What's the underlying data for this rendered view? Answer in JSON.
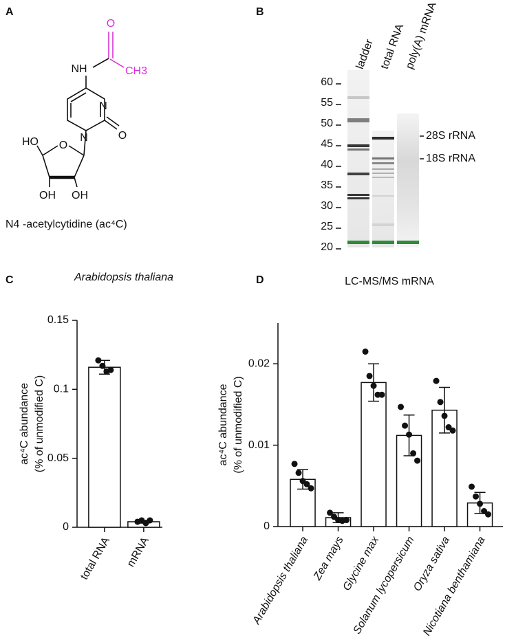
{
  "panel_labels": [
    "A",
    "B",
    "C",
    "D"
  ],
  "structure": {
    "atoms": [
      "NH",
      "O",
      "CH3",
      "N",
      "O",
      "N",
      "O",
      "HO",
      "OH",
      "OH"
    ],
    "caption": "N4 -acetylcytidine (ac⁴C)"
  },
  "gel": {
    "ticks": [
      60,
      55,
      50,
      45,
      40,
      35,
      30,
      25,
      20
    ],
    "lanes": [
      "ladder",
      "total RNA",
      "poly(A) mRNA"
    ],
    "markers": [
      {
        "label": "28S rRNA",
        "value": 47
      },
      {
        "label": "18S rRNA",
        "value": 41.5
      }
    ]
  },
  "chart_data": [
    {
      "type": "bar",
      "title": "Arabidopsis thaliana",
      "ylabel": [
        "ac⁴C abundance",
        "(% of unmodified C)"
      ],
      "categories": [
        "total RNA",
        "mRNA"
      ],
      "values": [
        0.116,
        0.004
      ],
      "errors": [
        0.005,
        0.001
      ],
      "points": [
        [
          0.121,
          0.117,
          0.113,
          0.114
        ],
        [
          0.004,
          0.005,
          0.003,
          0.005
        ]
      ],
      "ylim": [
        0,
        0.15
      ],
      "yticks": [
        0,
        0.05,
        0.1,
        0.15
      ],
      "color": "#ffffff"
    },
    {
      "type": "bar",
      "title": "LC-MS/MS mRNA",
      "ylabel": [
        "ac⁴C abundance",
        "(% of unmodified C)"
      ],
      "categories": [
        "Arabidopsis thaliana",
        "Zea mays",
        "Glycine max",
        "Solanum lycopersicum",
        "Oryza sativa",
        "Nicotiana benthamiana"
      ],
      "values": [
        0.0058,
        0.0011,
        0.0177,
        0.0112,
        0.0143,
        0.0029
      ],
      "errors": [
        0.0012,
        0.0006,
        0.0023,
        0.0025,
        0.0028,
        0.0013
      ],
      "points": [
        [
          0.0077,
          0.0066,
          0.0056,
          0.0052,
          0.0047
        ],
        [
          0.0017,
          0.0012,
          0.0008,
          0.0007,
          0.0008
        ],
        [
          0.0215,
          0.0185,
          0.0173,
          0.0162,
          0.0162
        ],
        [
          0.0147,
          0.0124,
          0.0113,
          0.009,
          0.0081
        ],
        [
          0.0179,
          0.0153,
          0.0136,
          0.0122,
          0.0118
        ],
        [
          0.0049,
          0.0037,
          0.0028,
          0.0019,
          0.0015
        ]
      ],
      "ylim": [
        0,
        0.025
      ],
      "yticks": [
        0,
        0.01,
        0.02
      ],
      "color": "#ffffff"
    }
  ]
}
